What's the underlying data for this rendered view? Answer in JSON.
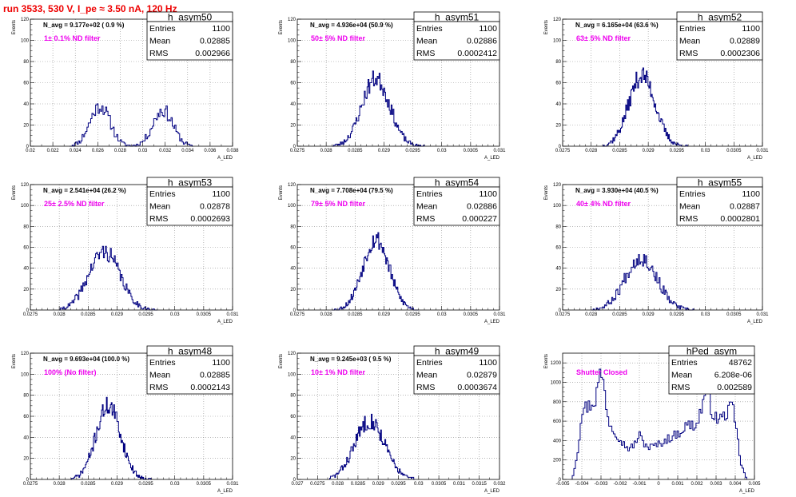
{
  "run_title": "run 3533,   530 V, I_pe ≈ 3.50 nA, 120 Hz",
  "colors": {
    "histogram": "#000080",
    "title": "#ee0000",
    "filter_label": "#ee00ee",
    "grid": "#8c8c8c"
  },
  "chart_data": [
    {
      "type": "histogram",
      "name": "h_asym50",
      "navg": "N_avg = 9.177e+02 ( 0.9 %)",
      "filter": "1± 0.1% ND filter",
      "stats": {
        "entries_label": "Entries",
        "entries": "1100",
        "mean_label": "Mean",
        "mean": "0.02885",
        "rms_label": "RMS",
        "rms": "0.002966"
      },
      "ylabel": "Events",
      "xlabel": "A_LED",
      "xlim": [
        0.02,
        0.038
      ],
      "ylim": [
        0,
        120
      ],
      "xticks": [
        0.02,
        0.022,
        0.024,
        0.026,
        0.028,
        0.03,
        0.032,
        0.034,
        0.036,
        0.038
      ],
      "xtick_labels": [
        "0.02",
        "0.022",
        "0.024",
        "0.026",
        "0.028",
        "0.03",
        "0.032",
        "0.034",
        "0.036",
        "0.038"
      ],
      "yticks": [
        0,
        20,
        40,
        60,
        80,
        100,
        120
      ],
      "peaks": [
        {
          "mu": 0.0262,
          "sigma": 0.0009,
          "amp": 38
        },
        {
          "mu": 0.0318,
          "sigma": 0.0009,
          "amp": 34
        }
      ],
      "range": [
        0.0235,
        0.0345
      ],
      "bins": 100,
      "noise_seed": 11
    },
    {
      "type": "histogram",
      "name": "h_asym51",
      "navg": "N_avg = 4.936e+04 (50.9 %)",
      "filter": "50± 5% ND filter",
      "stats": {
        "entries_label": "Entries",
        "entries": "1100",
        "mean_label": "Mean",
        "mean": "0.02886",
        "rms_label": "RMS",
        "rms": "0.0002412"
      },
      "ylabel": "Events",
      "xlabel": "A_LED",
      "xlim": [
        0.0275,
        0.031
      ],
      "ylim": [
        0,
        120
      ],
      "xticks": [
        0.0275,
        0.028,
        0.0285,
        0.029,
        0.0295,
        0.03,
        0.0305,
        0.031
      ],
      "xtick_labels": [
        "0.0275",
        "0.028",
        "0.0285",
        "0.029",
        "0.0295",
        "0.03",
        "0.0305",
        "0.031"
      ],
      "yticks": [
        0,
        20,
        40,
        60,
        80,
        100,
        120
      ],
      "peaks": [
        {
          "mu": 0.02886,
          "sigma": 0.00024,
          "amp": 64
        }
      ],
      "range": [
        0.0281,
        0.0297
      ],
      "bins": 100,
      "noise_seed": 23
    },
    {
      "type": "histogram",
      "name": "h_asym52",
      "navg": "N_avg = 6.165e+04 (63.6 %)",
      "filter": "63± 5% ND filter",
      "stats": {
        "entries_label": "Entries",
        "entries": "1100",
        "mean_label": "Mean",
        "mean": "0.02889",
        "rms_label": "RMS",
        "rms": "0.0002306"
      },
      "ylabel": "Events",
      "xlabel": "A_LED",
      "xlim": [
        0.0275,
        0.031
      ],
      "ylim": [
        0,
        120
      ],
      "xticks": [
        0.0275,
        0.028,
        0.0285,
        0.029,
        0.0295,
        0.03,
        0.0305,
        0.031
      ],
      "xtick_labels": [
        "0.0275",
        "0.028",
        "0.0285",
        "0.029",
        "0.0295",
        "0.03",
        "0.0305",
        "0.031"
      ],
      "yticks": [
        0,
        20,
        40,
        60,
        80,
        100,
        120
      ],
      "peaks": [
        {
          "mu": 0.02889,
          "sigma": 0.00023,
          "amp": 67
        }
      ],
      "range": [
        0.0282,
        0.0297
      ],
      "bins": 100,
      "noise_seed": 37
    },
    {
      "type": "histogram",
      "name": "h_asym53",
      "navg": "N_avg = 2.541e+04 (26.2 %)",
      "filter": "25± 2.5% ND filter",
      "stats": {
        "entries_label": "Entries",
        "entries": "1100",
        "mean_label": "Mean",
        "mean": "0.02878",
        "rms_label": "RMS",
        "rms": "0.0002693"
      },
      "ylabel": "Events",
      "xlabel": "A_LED",
      "xlim": [
        0.0275,
        0.031
      ],
      "ylim": [
        0,
        120
      ],
      "xticks": [
        0.0275,
        0.028,
        0.0285,
        0.029,
        0.0295,
        0.03,
        0.0305,
        0.031
      ],
      "xtick_labels": [
        "0.0275",
        "0.028",
        "0.0285",
        "0.029",
        "0.0295",
        "0.03",
        "0.0305",
        "0.031"
      ],
      "yticks": [
        0,
        20,
        40,
        60,
        80,
        100,
        120
      ],
      "peaks": [
        {
          "mu": 0.02878,
          "sigma": 0.00027,
          "amp": 56
        }
      ],
      "range": [
        0.028,
        0.0297
      ],
      "bins": 100,
      "noise_seed": 41
    },
    {
      "type": "histogram",
      "name": "h_asym54",
      "navg": "N_avg = 7.708e+04 (79.5 %)",
      "filter": "79± 5% ND filter",
      "stats": {
        "entries_label": "Entries",
        "entries": "1100",
        "mean_label": "Mean",
        "mean": "0.02886",
        "rms_label": "RMS",
        "rms": "0.000227"
      },
      "ylabel": "Events",
      "xlabel": "A_LED",
      "xlim": [
        0.0275,
        0.031
      ],
      "ylim": [
        0,
        120
      ],
      "xticks": [
        0.0275,
        0.028,
        0.0285,
        0.029,
        0.0295,
        0.03,
        0.0305,
        0.031
      ],
      "xtick_labels": [
        "0.0275",
        "0.028",
        "0.0285",
        "0.029",
        "0.0295",
        "0.03",
        "0.0305",
        "0.031"
      ],
      "yticks": [
        0,
        20,
        40,
        60,
        80,
        100,
        120
      ],
      "peaks": [
        {
          "mu": 0.02886,
          "sigma": 0.000227,
          "amp": 68
        }
      ],
      "range": [
        0.0281,
        0.0296
      ],
      "bins": 100,
      "noise_seed": 53
    },
    {
      "type": "histogram",
      "name": "h_asym55",
      "navg": "N_avg = 3.930e+04 (40.5 %)",
      "filter": "40± 4% ND filter",
      "stats": {
        "entries_label": "Entries",
        "entries": "1100",
        "mean_label": "Mean",
        "mean": "0.02887",
        "rms_label": "RMS",
        "rms": "0.0002801"
      },
      "ylabel": "Events",
      "xlabel": "A_LED",
      "xlim": [
        0.0275,
        0.031
      ],
      "ylim": [
        0,
        120
      ],
      "xticks": [
        0.0275,
        0.028,
        0.0285,
        0.029,
        0.0295,
        0.03,
        0.0305,
        0.031
      ],
      "xtick_labels": [
        "0.0275",
        "0.028",
        "0.0285",
        "0.029",
        "0.0295",
        "0.03",
        "0.0305",
        "0.031"
      ],
      "yticks": [
        0,
        20,
        40,
        60,
        80,
        100,
        120
      ],
      "peaks": [
        {
          "mu": 0.02887,
          "sigma": 0.00028,
          "amp": 50
        }
      ],
      "range": [
        0.028,
        0.0298
      ],
      "bins": 100,
      "noise_seed": 67
    },
    {
      "type": "histogram",
      "name": "h_asym48",
      "navg": "N_avg = 9.693e+04 (100.0 %)",
      "filter": "100% (No filter)",
      "stats": {
        "entries_label": "Entries",
        "entries": "1100",
        "mean_label": "Mean",
        "mean": "0.02885",
        "rms_label": "RMS",
        "rms": "0.0002143"
      },
      "ylabel": "Events",
      "xlabel": "A_LED",
      "xlim": [
        0.0275,
        0.031
      ],
      "ylim": [
        0,
        120
      ],
      "xticks": [
        0.0275,
        0.028,
        0.0285,
        0.029,
        0.0295,
        0.03,
        0.0305,
        0.031
      ],
      "xtick_labels": [
        "0.0275",
        "0.028",
        "0.0285",
        "0.029",
        "0.0295",
        "0.03",
        "0.0305",
        "0.031"
      ],
      "yticks": [
        0,
        20,
        40,
        60,
        80,
        100,
        120
      ],
      "peaks": [
        {
          "mu": 0.02885,
          "sigma": 0.000214,
          "amp": 70
        }
      ],
      "range": [
        0.0282,
        0.0296
      ],
      "bins": 100,
      "noise_seed": 71
    },
    {
      "type": "histogram",
      "name": "h_asym49",
      "navg": "N_avg = 9.245e+03 ( 9.5 %)",
      "filter": "10± 1% ND filter",
      "stats": {
        "entries_label": "Entries",
        "entries": "1100",
        "mean_label": "Mean",
        "mean": "0.02879",
        "rms_label": "RMS",
        "rms": "0.0003674"
      },
      "ylabel": "Events",
      "xlabel": "A_LED",
      "xlim": [
        0.027,
        0.032
      ],
      "ylim": [
        0,
        120
      ],
      "xticks": [
        0.027,
        0.0275,
        0.028,
        0.0285,
        0.029,
        0.0295,
        0.03,
        0.0305,
        0.031,
        0.0315,
        0.032
      ],
      "xtick_labels": [
        "0.027",
        "0.0275",
        "0.028",
        "0.0285",
        "0.029",
        "0.0295",
        "0.03",
        "0.0305",
        "0.031",
        "0.0315",
        "0.032"
      ],
      "yticks": [
        0,
        20,
        40,
        60,
        80,
        100,
        120
      ],
      "peaks": [
        {
          "mu": 0.02879,
          "sigma": 0.00037,
          "amp": 56
        }
      ],
      "range": [
        0.0278,
        0.0299
      ],
      "bins": 100,
      "noise_seed": 83
    },
    {
      "type": "histogram",
      "name": "hPed_asym",
      "navg": "",
      "filter": "Shutter Closed",
      "stats": {
        "entries_label": "Entries",
        "entries": "48762",
        "mean_label": "Mean",
        "mean": "6.208e-06",
        "rms_label": "RMS",
        "rms": "0.002589"
      },
      "ylabel": "Events",
      "xlabel": "A_LED",
      "xlim": [
        -0.005,
        0.005
      ],
      "ylim": [
        0,
        1300
      ],
      "xticks": [
        -0.005,
        -0.004,
        -0.003,
        -0.002,
        -0.001,
        0,
        0.001,
        0.002,
        0.003,
        0.004,
        0.005
      ],
      "xtick_labels": [
        "-0.005",
        "-0.004",
        "-0.003",
        "-0.002",
        "-0.001",
        "0",
        "0.001",
        "0.002",
        "0.003",
        "0.004",
        "0.005"
      ],
      "yticks": [
        0,
        200,
        400,
        600,
        800,
        1000,
        1200
      ],
      "ped_shape": [
        [
          -0.0045,
          0
        ],
        [
          -0.0042,
          300
        ],
        [
          -0.004,
          720
        ],
        [
          -0.0036,
          760
        ],
        [
          -0.0033,
          820
        ],
        [
          -0.003,
          1120
        ],
        [
          -0.0028,
          900
        ],
        [
          -0.0026,
          600
        ],
        [
          -0.0022,
          480
        ],
        [
          -0.0018,
          360
        ],
        [
          -0.0015,
          310
        ],
        [
          -0.0012,
          380
        ],
        [
          -0.001,
          460
        ],
        [
          -0.0008,
          380
        ],
        [
          -0.0005,
          330
        ],
        [
          0.0,
          360
        ],
        [
          0.0005,
          420
        ],
        [
          0.001,
          470
        ],
        [
          0.0015,
          560
        ],
        [
          0.002,
          560
        ],
        [
          0.0023,
          780
        ],
        [
          0.0025,
          960
        ],
        [
          0.0027,
          760
        ],
        [
          0.003,
          620
        ],
        [
          0.0034,
          640
        ],
        [
          0.0037,
          740
        ],
        [
          0.0039,
          700
        ],
        [
          0.0041,
          450
        ],
        [
          0.0043,
          160
        ],
        [
          0.0046,
          0
        ]
      ],
      "range": [
        -0.0045,
        0.0046
      ],
      "bins": 110,
      "noise_seed": 97
    }
  ]
}
